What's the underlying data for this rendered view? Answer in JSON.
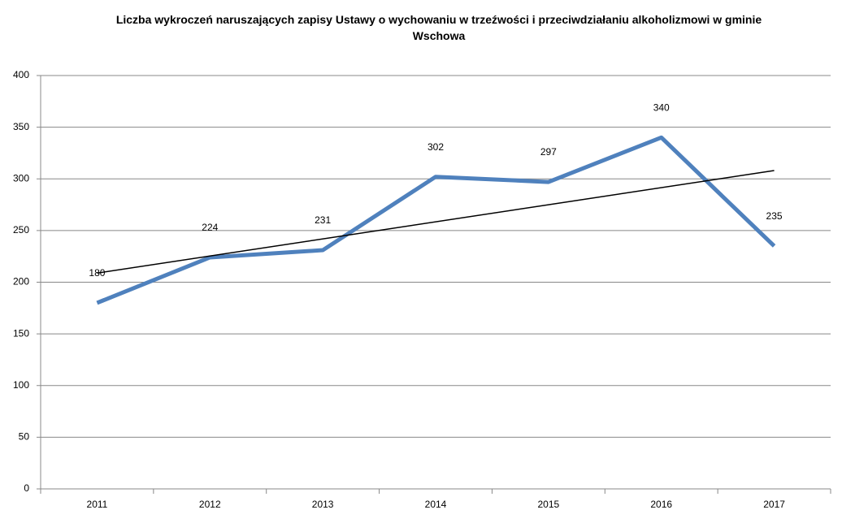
{
  "chart_data": {
    "type": "line",
    "title": "Liczba wykroczeń naruszających zapisy Ustawy o wychowaniu w trzeźwości i przeciwdziałaniu alkoholizmowi w gminie Wschowa",
    "categories": [
      "2011",
      "2012",
      "2013",
      "2014",
      "2015",
      "2016",
      "2017"
    ],
    "series": [
      {
        "name": "Liczba wykroczeń",
        "color": "#4f81bd",
        "values": [
          180,
          224,
          231,
          302,
          297,
          340,
          235
        ]
      }
    ],
    "trendline": "linear",
    "trendline_color": "#000000",
    "ylim": [
      0,
      400
    ],
    "yticks": [
      0,
      50,
      100,
      150,
      200,
      250,
      300,
      350,
      400
    ],
    "grid": true,
    "data_labels": true
  }
}
